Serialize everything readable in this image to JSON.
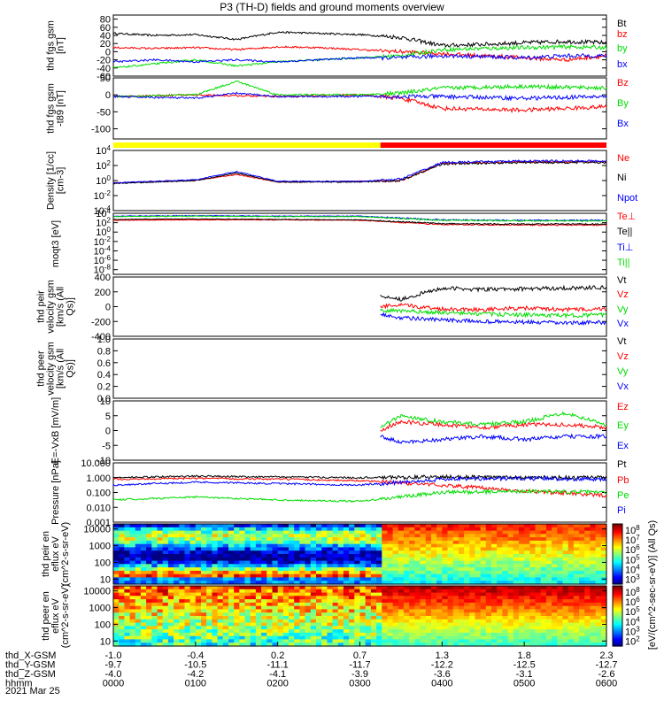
{
  "title": "P3 (TH-D) fields and ground moments overview",
  "date_label": "2021 Mar 25",
  "colors": {
    "black": "#000000",
    "red": "#ff0000",
    "green": "#00dd00",
    "blue": "#0000ff",
    "yellow_bar": "#ffff00",
    "red_bar": "#ff0000"
  },
  "time_axis": {
    "rows": [
      {
        "label": "thd_X-GSM",
        "values": [
          "-1.0",
          "-0.4",
          "0.2",
          "0.7",
          "1.3",
          "1.8",
          "2.3"
        ]
      },
      {
        "label": "thd_Y-GSM",
        "values": [
          "-9.7",
          "-10.5",
          "-11.1",
          "-11.7",
          "-12.2",
          "-12.5",
          "-12.7"
        ]
      },
      {
        "label": "thd_Z-GSM",
        "values": [
          "-4.0",
          "-4.2",
          "-4.1",
          "-3.9",
          "-3.6",
          "-3.1",
          "-2.6"
        ]
      },
      {
        "label": "hhmm",
        "values": [
          "0000",
          "0100",
          "0200",
          "0300",
          "0400",
          "0500",
          "0600"
        ]
      }
    ]
  },
  "colorbar_label": "[eV/(cm^2-sec-sr-eV)] (All Qs)",
  "colorbars": [
    {
      "ticks": [
        "10^8",
        "10^7",
        "10^6",
        "10^5",
        "10^4",
        "10^3"
      ]
    },
    {
      "ticks": [
        "10^8",
        "10^6",
        "10^5",
        "10^4",
        "10^3",
        "10^2"
      ]
    }
  ],
  "chart_data": [
    {
      "type": "line",
      "panel": "fgs_gsm",
      "ylabel": "thd fgs gsm [nT]",
      "ylim": [
        -60,
        90
      ],
      "yticks": [
        "80",
        "60",
        "40",
        "20",
        "0",
        "-20",
        "-40",
        "-60"
      ],
      "xlim_hours": [
        0,
        6
      ],
      "series": [
        {
          "name": "Bt",
          "color": "black",
          "x": [
            0,
            0.5,
            1.0,
            1.5,
            2.0,
            2.5,
            3.0,
            3.5,
            4.0,
            4.5,
            5.0,
            5.5,
            6.0
          ],
          "y": [
            45,
            40,
            42,
            30,
            48,
            45,
            42,
            35,
            15,
            18,
            22,
            25,
            22
          ]
        },
        {
          "name": "bz",
          "color": "red",
          "x": [
            0,
            0.5,
            1.0,
            1.5,
            2.0,
            2.5,
            3.0,
            3.5,
            4.0,
            4.5,
            5.0,
            5.5,
            6.0
          ],
          "y": [
            10,
            8,
            10,
            5,
            12,
            10,
            5,
            0,
            -5,
            -10,
            -15,
            -20,
            -10
          ]
        },
        {
          "name": "by",
          "color": "green",
          "x": [
            0,
            0.5,
            1.0,
            1.5,
            2.0,
            2.5,
            3.0,
            3.5,
            4.0,
            4.5,
            5.0,
            5.5,
            6.0
          ],
          "y": [
            -40,
            -30,
            -20,
            -35,
            -25,
            -20,
            -15,
            -10,
            5,
            8,
            10,
            12,
            10
          ]
        },
        {
          "name": "bx",
          "color": "blue",
          "x": [
            0,
            0.5,
            1.0,
            1.5,
            2.0,
            2.5,
            3.0,
            3.5,
            4.0,
            4.5,
            5.0,
            5.5,
            6.0
          ],
          "y": [
            -25,
            -20,
            -25,
            -20,
            -25,
            -20,
            -15,
            -15,
            -10,
            -12,
            -15,
            -10,
            -10
          ]
        }
      ]
    },
    {
      "type": "line",
      "panel": "fgs_gsm_t89",
      "ylabel": "thd fgs gsm -t89 [nT]",
      "ylim": [
        -130,
        50
      ],
      "yticks": [
        "50",
        "0",
        "-50",
        "-100"
      ],
      "series": [
        {
          "name": "Bz",
          "color": "red",
          "x": [
            0,
            1,
            2,
            3,
            3.5,
            4,
            5,
            6
          ],
          "y": [
            -5,
            0,
            -5,
            0,
            -10,
            -40,
            -45,
            -35
          ]
        },
        {
          "name": "By",
          "color": "green",
          "x": [
            0,
            1,
            1.5,
            2,
            3,
            3.5,
            4,
            5,
            6
          ],
          "y": [
            -5,
            0,
            40,
            0,
            0,
            5,
            20,
            25,
            20
          ]
        },
        {
          "name": "Bx",
          "color": "blue",
          "x": [
            0,
            1,
            1.5,
            2,
            3,
            3.5,
            4,
            5,
            6
          ],
          "y": [
            -5,
            -10,
            5,
            -5,
            -5,
            -5,
            -5,
            -10,
            -5
          ]
        }
      ]
    },
    {
      "type": "bar",
      "panel": "region_bar",
      "segments": [
        {
          "from": 0,
          "to": 3.25,
          "color": "yellow_bar"
        },
        {
          "from": 3.25,
          "to": 6,
          "color": "red_bar"
        }
      ]
    },
    {
      "type": "line",
      "panel": "density",
      "ylabel": "Density [1/cc] [cm-3]",
      "scale": "log",
      "ylim_exp": [
        -4,
        4
      ],
      "yticks": [
        "10^4",
        "10^2",
        "10^0",
        "10^-2",
        "10^-4"
      ],
      "series": [
        {
          "name": "Ne",
          "color": "red",
          "x": [
            0,
            1,
            1.5,
            2,
            3,
            3.5,
            4,
            5,
            6
          ],
          "y": [
            -0.3,
            0,
            0.8,
            -0.2,
            -0.1,
            0,
            2.3,
            2.5,
            2.5
          ]
        },
        {
          "name": "Ni",
          "color": "black",
          "x": [
            0,
            1,
            1.5,
            2,
            3,
            3.5,
            4,
            5,
            6
          ],
          "y": [
            -0.4,
            0,
            1.0,
            -0.2,
            -0.2,
            0,
            2.2,
            2.4,
            2.4
          ]
        },
        {
          "name": "Npot",
          "color": "blue",
          "x": [
            0,
            1,
            1.5,
            2,
            3,
            3.5,
            4,
            5,
            6
          ],
          "y": [
            -0.3,
            0.1,
            1.2,
            -0.1,
            -0.1,
            0.2,
            2.4,
            2.6,
            2.6
          ]
        }
      ]
    },
    {
      "type": "line",
      "panel": "moqt3",
      "ylabel": "moqt3 [eV]",
      "scale": "log",
      "ylim_exp": [
        -9,
        4
      ],
      "yticks": [
        "10^4",
        "10^2",
        "10^0",
        "10^-2",
        "10^-4",
        "10^-6",
        "10^-8"
      ],
      "series": [
        {
          "name": "Te⊥",
          "color": "red",
          "x": [
            0,
            1,
            2,
            3,
            4,
            5,
            6
          ],
          "y": [
            2.5,
            2.6,
            2.6,
            2.5,
            1.6,
            1.5,
            1.5
          ]
        },
        {
          "name": "Te||",
          "color": "black",
          "x": [
            0,
            1,
            2,
            3,
            4,
            5,
            6
          ],
          "y": [
            2.7,
            2.8,
            2.7,
            2.6,
            1.8,
            1.7,
            1.7
          ]
        },
        {
          "name": "Ti⊥",
          "color": "blue",
          "x": [
            0,
            1,
            2,
            3,
            4,
            5,
            6
          ],
          "y": [
            3.4,
            3.5,
            3.4,
            3.4,
            2.6,
            2.5,
            2.5
          ]
        },
        {
          "name": "Ti||",
          "color": "green",
          "x": [
            0,
            1,
            2,
            3,
            4,
            5,
            6
          ],
          "y": [
            3.3,
            3.4,
            3.3,
            3.3,
            2.5,
            2.4,
            2.4
          ]
        }
      ]
    },
    {
      "type": "line",
      "panel": "peir_velocity",
      "ylabel": "thd peir velocity gsm [km/s (All Qs)]",
      "ylim": [
        -400,
        400
      ],
      "yticks": [
        "400",
        "200",
        "0",
        "-200",
        "-400"
      ],
      "series": [
        {
          "name": "Vt",
          "color": "black",
          "x": [
            3.25,
            3.5,
            4,
            4.5,
            5,
            5.5,
            6
          ],
          "y": [
            150,
            100,
            250,
            230,
            240,
            250,
            260
          ]
        },
        {
          "name": "Vz",
          "color": "red",
          "x": [
            3.25,
            3.5,
            4,
            4.5,
            5,
            5.5,
            6
          ],
          "y": [
            0,
            20,
            -30,
            -40,
            -20,
            -40,
            -30
          ]
        },
        {
          "name": "Vy",
          "color": "green",
          "x": [
            3.25,
            3.5,
            4,
            4.5,
            5,
            5.5,
            6
          ],
          "y": [
            -50,
            -60,
            -80,
            -100,
            -110,
            -120,
            -110
          ]
        },
        {
          "name": "Vx",
          "color": "blue",
          "x": [
            3.25,
            3.5,
            4,
            4.5,
            5,
            5.5,
            6
          ],
          "y": [
            -100,
            -150,
            -180,
            -200,
            -210,
            -220,
            -210
          ]
        }
      ]
    },
    {
      "type": "line",
      "panel": "peer_velocity",
      "ylabel": "thd peer velocity gsm [km/s (All Qs)]",
      "ylim": [
        0,
        1
      ],
      "yticks": [
        "1.0",
        "0.8",
        "0.6",
        "0.4",
        "0.2",
        "0.0"
      ],
      "series": [
        {
          "name": "Vt",
          "color": "black",
          "x": [],
          "y": []
        },
        {
          "name": "Vz",
          "color": "red",
          "x": [],
          "y": []
        },
        {
          "name": "Vy",
          "color": "green",
          "x": [],
          "y": []
        },
        {
          "name": "Vx",
          "color": "blue",
          "x": [],
          "y": []
        }
      ]
    },
    {
      "type": "line",
      "panel": "e_field",
      "ylabel": "E=-VxB [mV/m]",
      "ylim": [
        -10,
        10
      ],
      "yticks": [
        "10",
        "5",
        "0",
        "-5",
        "-10"
      ],
      "series": [
        {
          "name": "Ez",
          "color": "red",
          "x": [
            3.25,
            3.5,
            4,
            4.5,
            5,
            5.5,
            6
          ],
          "y": [
            0,
            3,
            2,
            1,
            2,
            2,
            1
          ]
        },
        {
          "name": "Ey",
          "color": "green",
          "x": [
            3.25,
            3.5,
            4,
            4.5,
            5,
            5.5,
            6
          ],
          "y": [
            1,
            5,
            3,
            2,
            3,
            6,
            2
          ]
        },
        {
          "name": "Ex",
          "color": "blue",
          "x": [
            3.25,
            3.5,
            4,
            4.5,
            5,
            5.5,
            6
          ],
          "y": [
            -2,
            -4,
            -3,
            -2,
            -3,
            -2,
            -2
          ]
        }
      ]
    },
    {
      "type": "line",
      "panel": "pressure",
      "ylabel": "Pressure [nPa]",
      "scale": "log",
      "ylim_exp": [
        -3,
        1
      ],
      "yticks": [
        "10.000",
        "1.000",
        "0.100",
        "0.010",
        "0.001"
      ],
      "series": [
        {
          "name": "Pt",
          "color": "black",
          "x": [
            0,
            1,
            2,
            3,
            4,
            5,
            6
          ],
          "y": [
            0,
            0.1,
            0.05,
            0,
            0.05,
            0,
            0
          ]
        },
        {
          "name": "Pb",
          "color": "red",
          "x": [
            0,
            1,
            2,
            3,
            4,
            5,
            6
          ],
          "y": [
            -0.1,
            -0.05,
            -0.1,
            -0.2,
            -0.5,
            -0.9,
            -1.2
          ]
        },
        {
          "name": "Pe",
          "color": "green",
          "x": [
            0,
            1,
            2,
            3,
            4,
            5,
            6
          ],
          "y": [
            -1.5,
            -1.3,
            -1.5,
            -1.6,
            -1.0,
            -0.9,
            -1.0
          ]
        },
        {
          "name": "Pi",
          "color": "blue",
          "x": [
            0,
            1,
            2,
            3,
            4,
            5,
            6
          ],
          "y": [
            -0.5,
            -0.3,
            -0.4,
            -0.5,
            -0.1,
            -0.05,
            -0.1
          ]
        }
      ]
    },
    {
      "type": "heatmap",
      "panel": "peir_en_eflux",
      "ylabel": "thd peir en eflux eV (cm^2-s-sr-eV)",
      "scale": "log",
      "ylim": [
        5,
        20000
      ],
      "yticks": [
        "10000",
        "1000",
        "100",
        "10"
      ]
    },
    {
      "type": "heatmap",
      "panel": "peer_en_eflux",
      "ylabel": "thd peer en eflux eV (cm^2-s-sr-eV)",
      "scale": "log",
      "ylim": [
        5,
        20000
      ],
      "yticks": [
        "10000",
        "1000",
        "100",
        "10"
      ]
    }
  ]
}
